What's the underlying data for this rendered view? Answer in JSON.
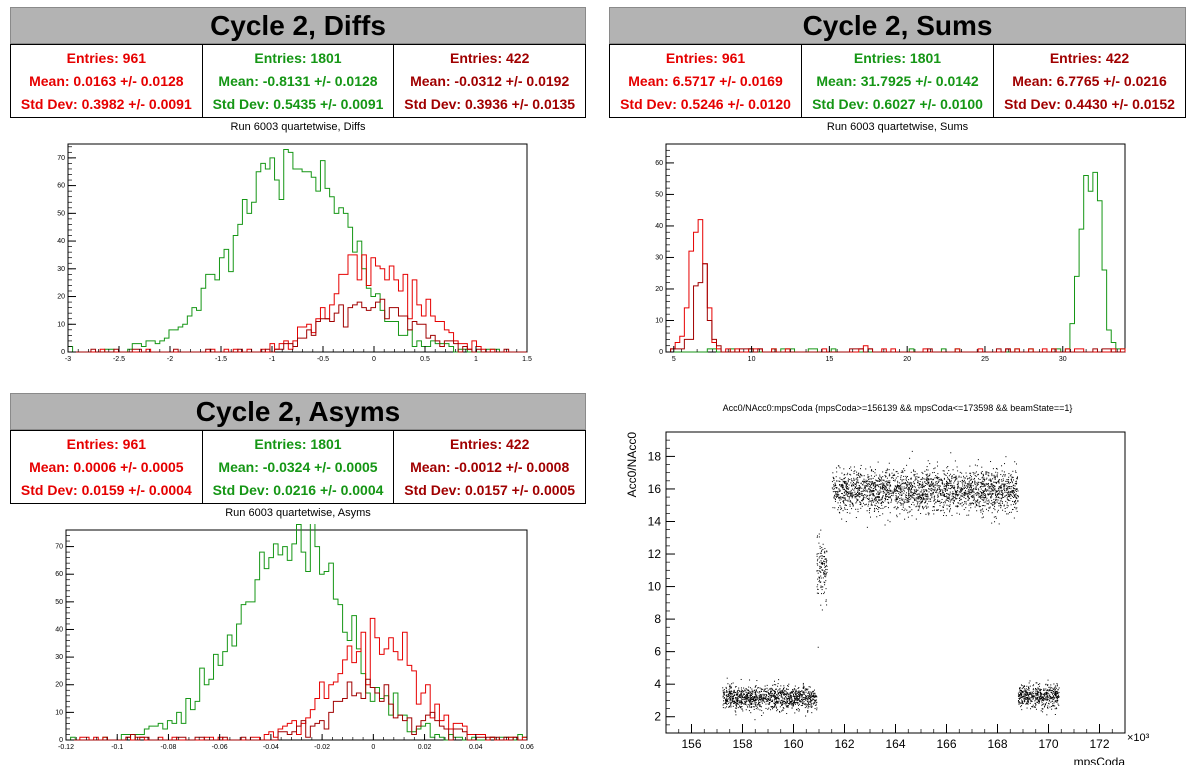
{
  "panels": {
    "diffs": {
      "banner": "Cycle 2, Diffs",
      "stats": [
        {
          "entries": "Entries: 961",
          "mean": "Mean: 0.0163 +/- 0.0128",
          "std": "Std Dev: 0.3982 +/- 0.0091"
        },
        {
          "entries": "Entries: 1801",
          "mean": "Mean: -0.8131 +/- 0.0128",
          "std": "Std Dev: 0.5435 +/- 0.0091"
        },
        {
          "entries": "Entries: 422",
          "mean": "Mean: -0.0312 +/- 0.0192",
          "std": "Std Dev: 0.3936 +/- 0.0135"
        }
      ],
      "subtitle": "Run 6003 quartetwise, Diffs"
    },
    "sums": {
      "banner": "Cycle 2, Sums",
      "stats": [
        {
          "entries": "Entries: 961",
          "mean": "Mean: 6.5717 +/- 0.0169",
          "std": "Std Dev: 0.5246 +/- 0.0120"
        },
        {
          "entries": "Entries: 1801",
          "mean": "Mean: 31.7925 +/- 0.0142",
          "std": "Std Dev: 0.6027 +/- 0.0100"
        },
        {
          "entries": "Entries: 422",
          "mean": "Mean: 6.7765 +/- 0.0216",
          "std": "Std Dev: 0.4430 +/- 0.0152"
        }
      ],
      "subtitle": "Run 6003 quartetwise, Sums"
    },
    "asyms": {
      "banner": "Cycle 2, Asyms",
      "stats": [
        {
          "entries": "Entries: 961",
          "mean": "Mean: 0.0006 +/- 0.0005",
          "std": "Std Dev: 0.0159 +/- 0.0004"
        },
        {
          "entries": "Entries: 1801",
          "mean": "Mean: -0.0324 +/- 0.0005",
          "std": "Std Dev: 0.0216 +/- 0.0004"
        },
        {
          "entries": "Entries: 422",
          "mean": "Mean: -0.0012 +/- 0.0008",
          "std": "Std Dev: 0.0157 +/- 0.0005"
        }
      ],
      "subtitle": "Run 6003 quartetwise, Asyms"
    },
    "scatter": {
      "title": "Acc0/NAcc0:mpsCoda {mpsCoda>=156139 && mpsCoda<=173598 && beamState==1}"
    }
  },
  "colors": {
    "series0": "#e60000",
    "series1": "#159615",
    "series2": "#a00000",
    "banner": "#b3b3b3"
  },
  "chart_data": [
    {
      "type": "histogram",
      "id": "diffs",
      "xlim": [
        -3,
        1.5
      ],
      "ylim": [
        0,
        75
      ],
      "xticks": [
        -3,
        -2.5,
        -2,
        -1.5,
        -1,
        -0.5,
        0,
        0.5,
        1,
        1.5
      ],
      "yticks": [
        0,
        10,
        20,
        30,
        40,
        50,
        60,
        70
      ],
      "series": [
        {
          "color": "series0",
          "entries": 961,
          "mean": 0.0163,
          "std": 0.3982,
          "peak": 33
        },
        {
          "color": "series1",
          "entries": 1801,
          "mean": -0.8131,
          "std": 0.5435,
          "peak": 70
        },
        {
          "color": "series2",
          "entries": 422,
          "mean": -0.0312,
          "std": 0.3936,
          "peak": 18
        }
      ]
    },
    {
      "type": "histogram",
      "id": "sums",
      "xlim": [
        4.5,
        34
      ],
      "ylim": [
        0,
        66
      ],
      "xticks": [
        5,
        10,
        15,
        20,
        25,
        30
      ],
      "yticks": [
        0,
        10,
        20,
        30,
        40,
        50,
        60
      ],
      "series": [
        {
          "color": "series0",
          "entries": 961,
          "mean": 6.5717,
          "std": 0.5246,
          "peak": 45
        },
        {
          "color": "series1",
          "entries": 1801,
          "mean": 31.7925,
          "std": 0.6027,
          "peak": 62
        },
        {
          "color": "series2",
          "entries": 422,
          "mean": 6.7765,
          "std": 0.443,
          "peak": 21
        }
      ]
    },
    {
      "type": "histogram",
      "id": "asyms",
      "xlim": [
        -0.12,
        0.06
      ],
      "ylim": [
        0,
        76
      ],
      "xticks": [
        -0.12,
        -0.1,
        -0.08,
        -0.06,
        -0.04,
        -0.02,
        0,
        0.02,
        0.04,
        0.06
      ],
      "xticklabels": [
        "-0.12",
        "-0.1",
        "-0.08",
        "-0.06",
        "-0.04",
        "-0.02",
        "0",
        "0.02",
        "0.04",
        "0.06"
      ],
      "yticks": [
        0,
        10,
        20,
        30,
        40,
        50,
        60,
        70
      ],
      "series": [
        {
          "color": "series0",
          "entries": 961,
          "mean": 0.0006,
          "std": 0.0159,
          "peak": 36
        },
        {
          "color": "series1",
          "entries": 1801,
          "mean": -0.0324,
          "std": 0.0216,
          "peak": 71
        },
        {
          "color": "series2",
          "entries": 422,
          "mean": -0.0012,
          "std": 0.0157,
          "peak": 17
        }
      ]
    },
    {
      "type": "scatter",
      "id": "scatter",
      "xlabel": "mpsCoda",
      "ylabel": "Acc0/NAcc0",
      "xscale_label": "×10³",
      "xlim": [
        155000,
        173000
      ],
      "ylim": [
        1,
        19.5
      ],
      "xticks": [
        156,
        158,
        160,
        162,
        164,
        166,
        168,
        170,
        172
      ],
      "yticks": [
        2,
        4,
        6,
        8,
        10,
        12,
        14,
        16,
        18
      ],
      "clusters": [
        {
          "x": [
            157200,
            160900
          ],
          "y_center": 3.2,
          "y_spread": 0.35
        },
        {
          "x": [
            160900,
            161300
          ],
          "y_center": 11.0,
          "y_spread": 0.9
        },
        {
          "x": [
            161500,
            168800
          ],
          "y_center": 15.9,
          "y_spread": 0.65
        },
        {
          "x": [
            168800,
            170400
          ],
          "y_center": 3.3,
          "y_spread": 0.35
        }
      ]
    }
  ]
}
